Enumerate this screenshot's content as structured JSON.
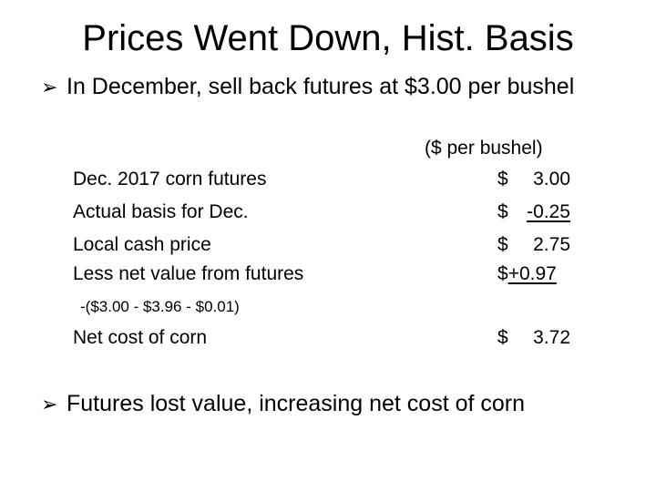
{
  "title": "Prices Went Down, Hist. Basis",
  "bullets": [
    "In December, sell back futures at $3.00 per bushel",
    "Futures lost value, increasing net cost of corn"
  ],
  "table": {
    "units": "($ per bushel)",
    "rows": [
      {
        "label": "Dec. 2017 corn futures",
        "currency": "$",
        "value": "3.00"
      },
      {
        "label": "Actual basis for Dec.",
        "currency": "$",
        "value": "-0.25"
      },
      {
        "label": "Local cash price",
        "currency": "$",
        "value": "2.75"
      },
      {
        "label": "Less net value from futures",
        "currency": "$",
        "value": "+0.97"
      }
    ],
    "calc_note": "-($3.00 - $3.96 - $0.01)",
    "total": {
      "label": "Net cost of corn",
      "currency": "$",
      "value": "3.72"
    }
  }
}
